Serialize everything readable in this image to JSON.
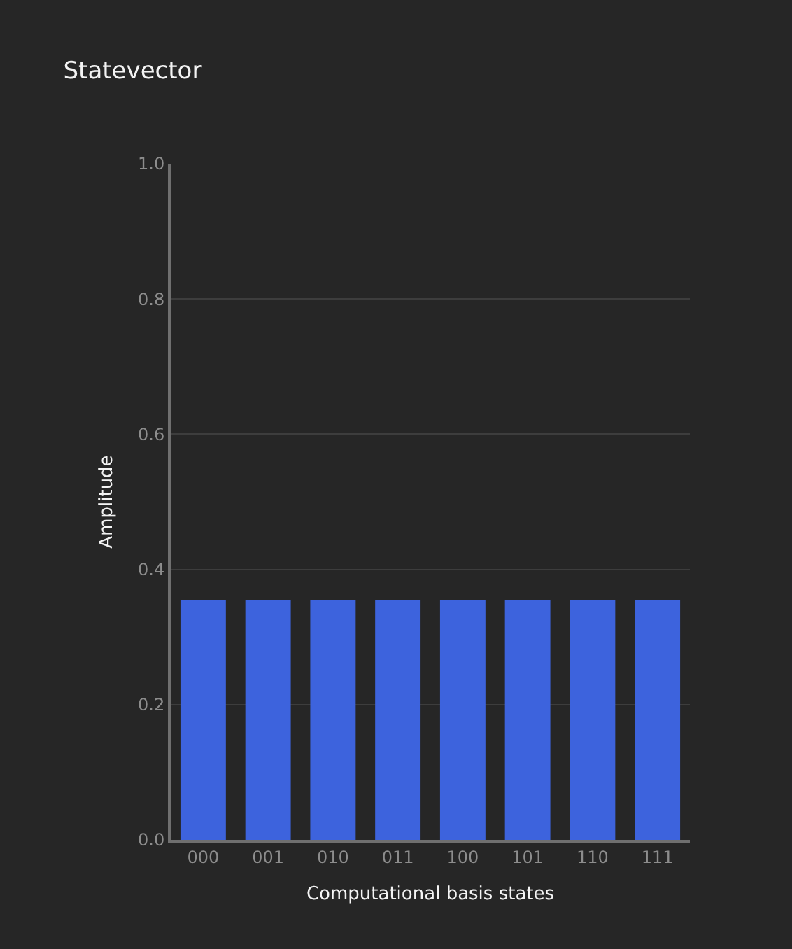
{
  "chart_data": {
    "type": "bar",
    "title": "Statevector",
    "xlabel": "Computational basis states",
    "ylabel": "Amplitude",
    "categories": [
      "000",
      "001",
      "010",
      "011",
      "100",
      "101",
      "110",
      "111"
    ],
    "values": [
      0.354,
      0.354,
      0.354,
      0.354,
      0.354,
      0.354,
      0.354,
      0.354
    ],
    "color": "#3d63dd",
    "ylim": [
      0,
      1
    ],
    "yticks": [
      {
        "value": 0,
        "label": "0.0"
      },
      {
        "value": 0.2,
        "label": "0.2"
      },
      {
        "value": 0.4,
        "label": "0.4"
      },
      {
        "value": 0.6,
        "label": "0.6"
      },
      {
        "value": 0.8,
        "label": "0.8"
      },
      {
        "value": 1,
        "label": "1.0"
      }
    ],
    "grid": "y"
  }
}
